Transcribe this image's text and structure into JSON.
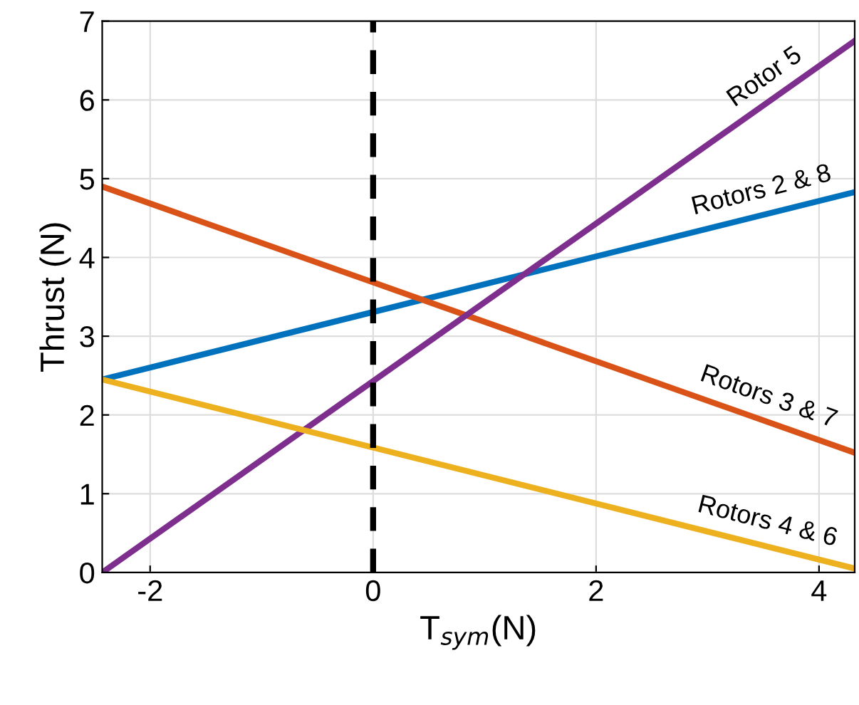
{
  "chart_data": {
    "type": "line",
    "xlabel": "T$_{sym}$(N)",
    "ylabel": "Thrust (N)",
    "xlim": [
      -2.43,
      4.32
    ],
    "ylim": [
      0,
      7
    ],
    "xticks": [
      -2,
      0,
      2,
      4
    ],
    "yticks": [
      0,
      1,
      2,
      3,
      4,
      5,
      6,
      7
    ],
    "grid": true,
    "legend": false,
    "marker": "none",
    "line_style": "solid",
    "x": [
      -2.43,
      4.32
    ],
    "series": [
      {
        "name": "Rotors 2 & 8",
        "color": "#0072bd",
        "values": [
          2.45,
          4.83
        ]
      },
      {
        "name": "Rotors 3 & 7",
        "color": "#d95319",
        "values": [
          4.9,
          1.52
        ]
      },
      {
        "name": "Rotor 5",
        "color": "#7e2f8e",
        "values": [
          0,
          6.75
        ]
      },
      {
        "name": "Rotors 4 & 6",
        "color": "#edb120",
        "values": [
          2.45,
          0.05
        ]
      }
    ],
    "ref_lines": [
      {
        "axis": "x",
        "value": 0,
        "label": null,
        "color": "#000000",
        "line_style": "dashed"
      }
    ]
  }
}
